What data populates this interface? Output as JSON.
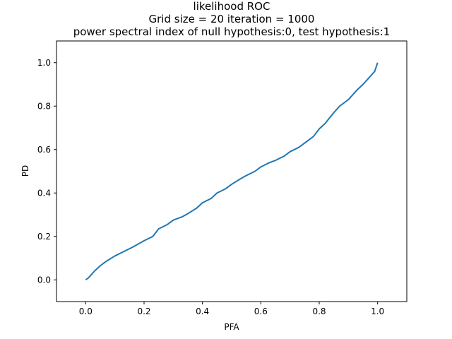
{
  "chart_data": {
    "type": "line",
    "title_lines": [
      "likelihood ROC",
      "Grid size = 20 iteration = 1000",
      "power spectral index of null hypothesis:0, test hypothesis:1"
    ],
    "xlabel": "PFA",
    "ylabel": "PD",
    "xlim": [
      -0.1,
      1.1
    ],
    "ylim": [
      -0.1,
      1.1
    ],
    "xticks": [
      0.0,
      0.2,
      0.4,
      0.6,
      0.8,
      1.0
    ],
    "yticks": [
      0.0,
      0.2,
      0.4,
      0.6,
      0.8,
      1.0
    ],
    "xtick_labels": [
      "0.0",
      "0.2",
      "0.4",
      "0.6",
      "0.8",
      "1.0"
    ],
    "ytick_labels": [
      "0.0",
      "0.2",
      "0.4",
      "0.6",
      "0.8",
      "1.0"
    ],
    "grid": false,
    "legend": "none",
    "line_color": "#1f77b4",
    "series": [
      {
        "x": [
          0.0,
          0.01,
          0.02,
          0.03,
          0.05,
          0.07,
          0.1,
          0.13,
          0.16,
          0.2,
          0.23,
          0.25,
          0.28,
          0.3,
          0.33,
          0.35,
          0.38,
          0.4,
          0.43,
          0.45,
          0.48,
          0.5,
          0.53,
          0.55,
          0.58,
          0.6,
          0.63,
          0.65,
          0.68,
          0.7,
          0.73,
          0.75,
          0.78,
          0.8,
          0.82,
          0.85,
          0.87,
          0.9,
          0.92,
          0.93,
          0.95,
          0.97,
          0.99,
          1.0
        ],
        "y": [
          0.0,
          0.01,
          0.025,
          0.04,
          0.065,
          0.085,
          0.11,
          0.13,
          0.15,
          0.18,
          0.2,
          0.235,
          0.255,
          0.275,
          0.29,
          0.305,
          0.33,
          0.355,
          0.375,
          0.4,
          0.42,
          0.44,
          0.465,
          0.48,
          0.5,
          0.52,
          0.54,
          0.55,
          0.57,
          0.59,
          0.61,
          0.63,
          0.66,
          0.695,
          0.72,
          0.77,
          0.8,
          0.83,
          0.86,
          0.875,
          0.9,
          0.93,
          0.96,
          1.0
        ]
      }
    ]
  }
}
